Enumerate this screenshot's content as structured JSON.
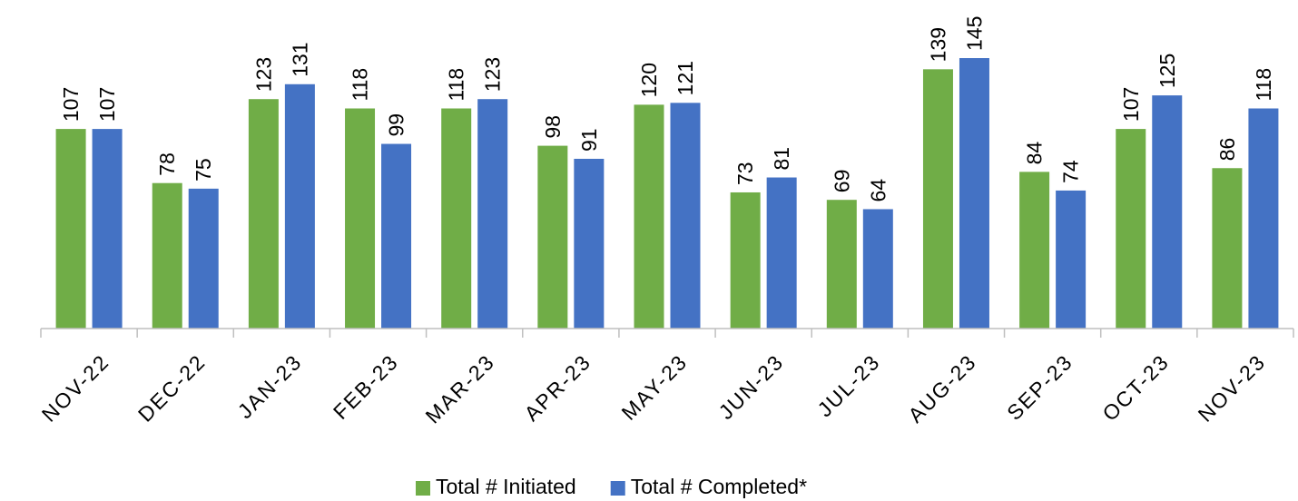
{
  "chart_data": {
    "type": "bar",
    "categories": [
      "NOV-22",
      "DEC-22",
      "JAN-23",
      "FEB-23",
      "MAR-23",
      "APR-23",
      "MAY-23",
      "JUN-23",
      "JUL-23",
      "AUG-23",
      "SEP-23",
      "OCT-23",
      "NOV-23"
    ],
    "series": [
      {
        "name": "Total # Initiated",
        "color": "#70ad47",
        "values": [
          107,
          78,
          123,
          118,
          118,
          98,
          120,
          73,
          69,
          139,
          84,
          107,
          86
        ]
      },
      {
        "name": "Total # Completed*",
        "color": "#4472c4",
        "values": [
          107,
          75,
          131,
          99,
          123,
          91,
          121,
          81,
          64,
          145,
          74,
          125,
          118
        ]
      }
    ],
    "legend": "bottom"
  }
}
